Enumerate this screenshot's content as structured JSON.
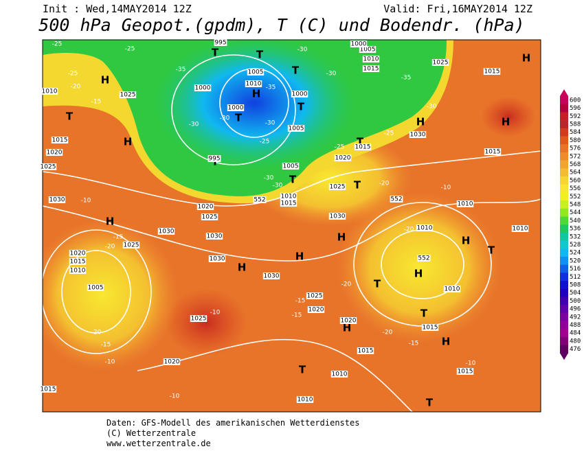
{
  "header": {
    "init": "Init : Wed,14MAY2014 12Z",
    "valid": "Valid: Fri,16MAY2014 12Z",
    "title": "500 hPa Geopot.(gpdm), T (C) und Bodendr. (hPa)"
  },
  "map": {
    "labels": [
      "H",
      "H",
      "H",
      "H",
      "H",
      "H",
      "H",
      "H",
      "H",
      "H",
      "H",
      "H",
      "H",
      "H",
      "T",
      "T",
      "T",
      "T",
      "T",
      "T",
      "T",
      "T",
      "T",
      "T",
      "T",
      "T",
      "T",
      "T",
      "T",
      "1010",
      "1025",
      "1015",
      "1020",
      "1025",
      "1030",
      "1020",
      "1025",
      "1030",
      "1030",
      "1030",
      "1030",
      "1025",
      "1020",
      "1025",
      "1020",
      "1015",
      "1020",
      "1010",
      "1010",
      "1015",
      "1015",
      "1010",
      "1015",
      "1010",
      "1010",
      "1010",
      "1015",
      "1025",
      "1015",
      "1030",
      "1025",
      "1030",
      "1005",
      "1000",
      "1000",
      "1005",
      "1010",
      "995",
      "995",
      "1000",
      "1005",
      "1010",
      "1015",
      "1020",
      "1015",
      "1005",
      "1010",
      "1015",
      "1000",
      "1020",
      "1015",
      "1010",
      "1005",
      "1025",
      "552",
      "552",
      "552",
      "-25",
      "-25",
      "-20",
      "-15",
      "-30",
      "-35",
      "-30",
      "-30",
      "-35",
      "-30",
      "-25",
      "-30",
      "-30",
      "-30",
      "-35",
      "-30",
      "-25",
      "-25",
      "-20",
      "-10",
      "-15",
      "-20",
      "-20",
      "-15",
      "-10",
      "-10",
      "-15",
      "-15",
      "-20",
      "-20",
      "-15",
      "-10",
      "-10",
      "-20",
      "-10",
      "-25"
    ]
  },
  "legend": {
    "levels": [
      {
        "label": "600",
        "color": "#c8005c"
      },
      {
        "label": "596",
        "color": "#b4003c"
      },
      {
        "label": "592",
        "color": "#c81e28"
      },
      {
        "label": "588",
        "color": "#b8282a"
      },
      {
        "label": "584",
        "color": "#d23c1c"
      },
      {
        "label": "580",
        "color": "#e05a1e"
      },
      {
        "label": "576",
        "color": "#e8742a"
      },
      {
        "label": "572",
        "color": "#ec8c2c"
      },
      {
        "label": "568",
        "color": "#f0a432"
      },
      {
        "label": "564",
        "color": "#f4bc32"
      },
      {
        "label": "560",
        "color": "#f8d432"
      },
      {
        "label": "556",
        "color": "#fae632"
      },
      {
        "label": "552",
        "color": "#f0f020"
      },
      {
        "label": "548",
        "color": "#c8f020"
      },
      {
        "label": "544",
        "color": "#90e820"
      },
      {
        "label": "540",
        "color": "#50d838"
      },
      {
        "label": "536",
        "color": "#20c860"
      },
      {
        "label": "532",
        "color": "#10c8a0"
      },
      {
        "label": "528",
        "color": "#10c8d0"
      },
      {
        "label": "524",
        "color": "#10b8f0"
      },
      {
        "label": "520",
        "color": "#1090f0"
      },
      {
        "label": "516",
        "color": "#1060e8"
      },
      {
        "label": "512",
        "color": "#1030e0"
      },
      {
        "label": "508",
        "color": "#1010d0"
      },
      {
        "label": "504",
        "color": "#2000c0"
      },
      {
        "label": "500",
        "color": "#4000b0"
      },
      {
        "label": "496",
        "color": "#6000a8"
      },
      {
        "label": "492",
        "color": "#7a00a0"
      },
      {
        "label": "488",
        "color": "#900098"
      },
      {
        "label": "484",
        "color": "#a00090"
      },
      {
        "label": "480",
        "color": "#800078"
      },
      {
        "label": "476",
        "color": "#600060"
      }
    ]
  },
  "footer": {
    "lines": [
      "Daten: GFS-Modell des amerikanischen Wetterdienstes",
      "(C) Wetterzentrale",
      "www.wetterzentrale.de"
    ]
  }
}
